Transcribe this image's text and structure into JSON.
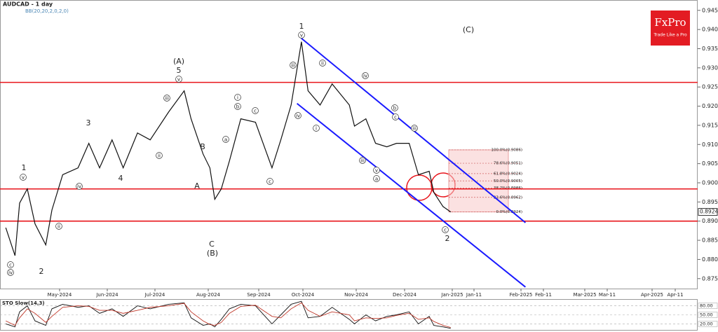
{
  "chart_data": {
    "type": "line",
    "title": "AUDCAD - 1 day",
    "subtitle": "BB(20,20,2,0,2,0)",
    "logo": {
      "brand": "FxPro",
      "tagline": "Trade Like a Pro"
    },
    "x": [
      "2024-03-27",
      "2024-04-02",
      "2024-04-05",
      "2024-04-10",
      "2024-04-15",
      "2024-04-22",
      "2024-04-26",
      "2024-05-03",
      "2024-05-13",
      "2024-05-20",
      "2024-05-27",
      "2024-06-04",
      "2024-06-11",
      "2024-06-20",
      "2024-06-28",
      "2024-07-09",
      "2024-07-18",
      "2024-07-22",
      "2024-07-29",
      "2024-08-02",
      "2024-08-05",
      "2024-08-09",
      "2024-08-14",
      "2024-08-21",
      "2024-08-30",
      "2024-09-10",
      "2024-09-16",
      "2024-09-23",
      "2024-09-30",
      "2024-10-04",
      "2024-10-11",
      "2024-10-18",
      "2024-10-28",
      "2024-10-31",
      "2024-11-07",
      "2024-11-13",
      "2024-11-20",
      "2024-11-26",
      "2024-12-04",
      "2024-12-10",
      "2024-12-17",
      "2024-12-20",
      "2024-12-26",
      "2024-12-31"
    ],
    "series": [
      {
        "name": "AUDCAD",
        "color": "#111111",
        "values": [
          0.8883,
          0.881,
          0.8947,
          0.8984,
          0.8893,
          0.8838,
          0.8929,
          0.9021,
          0.9039,
          0.9103,
          0.9039,
          0.9112,
          0.9039,
          0.913,
          0.9112,
          0.9185,
          0.924,
          0.9167,
          0.9075,
          0.9039,
          0.8957,
          0.8984,
          0.9057,
          0.9167,
          0.9158,
          0.9039,
          0.9112,
          0.9203,
          0.9368,
          0.924,
          0.9203,
          0.9258,
          0.9203,
          0.9148,
          0.9167,
          0.9103,
          0.9094,
          0.9103,
          0.9103,
          0.9021,
          0.903,
          0.8975,
          0.8938,
          0.8924
        ]
      }
    ],
    "last_price": 0.8924,
    "ylim": [
      0.8724,
      0.9477
    ],
    "yticks": [
      {
        "value": 0.945,
        "label": "0.9450"
      },
      {
        "value": 0.94,
        "label": "0.9400"
      },
      {
        "value": 0.935,
        "label": "0.9350"
      },
      {
        "value": 0.93,
        "label": "0.9300"
      },
      {
        "value": 0.925,
        "label": "0.9250"
      },
      {
        "value": 0.92,
        "label": "0.9200"
      },
      {
        "value": 0.915,
        "label": "0.9150"
      },
      {
        "value": 0.91,
        "label": "0.9100"
      },
      {
        "value": 0.905,
        "label": "0.9050"
      },
      {
        "value": 0.9,
        "label": "0.9000"
      },
      {
        "value": 0.895,
        "label": "0.8950"
      },
      {
        "value": 0.89,
        "label": "0.8900"
      },
      {
        "value": 0.885,
        "label": "0.8850"
      },
      {
        "value": 0.88,
        "label": "0.8800"
      },
      {
        "value": 0.875,
        "label": "0.8750"
      }
    ],
    "xticks": [
      {
        "value": "2024-05-01",
        "label": "May-2024"
      },
      {
        "value": "2024-06-01",
        "label": "Jun-2024"
      },
      {
        "value": "2024-07-01",
        "label": "Jul-2024"
      },
      {
        "value": "2024-08-01",
        "label": "Aug-2024"
      },
      {
        "value": "2024-09-01",
        "label": "Sep-2024"
      },
      {
        "value": "2024-10-01",
        "label": "Oct-2024"
      },
      {
        "value": "2024-11-01",
        "label": "Nov-2024"
      },
      {
        "value": "2024-12-01",
        "label": "Dec-2024"
      },
      {
        "value": "2025-01-01",
        "label": "Jan-2025"
      },
      {
        "value": "2025-01-11",
        "label": "Jan-11"
      },
      {
        "value": "2025-02-01",
        "label": "Feb-2025"
      },
      {
        "value": "2025-02-11",
        "label": "Feb-11"
      },
      {
        "value": "2025-03-01",
        "label": "Mar-2025"
      },
      {
        "value": "2025-03-11",
        "label": "Mar-11"
      },
      {
        "value": "2025-04-01",
        "label": "Apr-2025"
      },
      {
        "value": "2025-04-11",
        "label": "Apr-11"
      }
    ],
    "horizontal_lines": {
      "color": "#e8141b",
      "values": [
        0.9262,
        0.8984,
        0.89
      ]
    },
    "channel": {
      "color": "#1a1aff",
      "upper": {
        "x": [
          "2024-09-30",
          "2025-02-03"
        ],
        "values": [
          0.9377,
          0.8896
        ]
      },
      "lower": {
        "x": [
          "2024-09-27",
          "2025-02-03"
        ],
        "values": [
          0.9207,
          0.8728
        ]
      }
    },
    "fib_levels": [
      {
        "label": "100.0%(0.9086)",
        "price": 0.9086
      },
      {
        "label": "78.6%(0.9051)",
        "price": 0.9051
      },
      {
        "label": "61.8%(0.9024)",
        "price": 0.9024
      },
      {
        "label": "50.0%(0.9005)",
        "price": 0.9005
      },
      {
        "label": "38.2%(0.8986)",
        "price": 0.8986
      },
      {
        "label": "23.6%(0.8962)",
        "price": 0.8962
      },
      {
        "label": "0.0%(0.8924)",
        "price": 0.8924
      }
    ],
    "wave_labels": [
      "1",
      "(C)",
      "(A)",
      "5",
      "3",
      "4",
      "B",
      "A",
      "C",
      "(B)",
      "2",
      "1",
      "2"
    ],
    "subwave_labels": [
      "v",
      "iii",
      "iv",
      "i",
      "ii",
      "iv",
      "iii",
      "v",
      "a",
      "b",
      "c",
      "iii",
      "c",
      "v",
      "iv",
      "c",
      "ii",
      "iv",
      "v",
      "iii",
      "ii",
      "c",
      "i",
      "a",
      "b",
      "c"
    ],
    "stochastic": {
      "title": "STO Slow(14,3)",
      "ylim": [
        0,
        100
      ],
      "yticks": [
        {
          "value": 80,
          "label": "80.00"
        },
        {
          "value": 50,
          "label": "50.00"
        },
        {
          "value": 20,
          "label": "20.00"
        }
      ],
      "series": [
        {
          "name": "%K",
          "color": "#111111",
          "values": [
            20,
            10,
            60,
            80,
            30,
            15,
            70,
            85,
            75,
            80,
            55,
            70,
            45,
            80,
            70,
            85,
            90,
            40,
            15,
            20,
            10,
            35,
            70,
            85,
            80,
            20,
            50,
            85,
            95,
            40,
            45,
            75,
            35,
            20,
            50,
            30,
            45,
            50,
            60,
            20,
            45,
            15,
            10,
            5
          ]
        },
        {
          "name": "%D",
          "color": "#c0392b",
          "values": [
            30,
            15,
            40,
            70,
            55,
            25,
            45,
            75,
            80,
            78,
            65,
            65,
            55,
            65,
            75,
            80,
            88,
            60,
            30,
            18,
            15,
            25,
            55,
            78,
            82,
            45,
            40,
            70,
            90,
            65,
            45,
            60,
            50,
            30,
            40,
            38,
            40,
            48,
            55,
            35,
            40,
            28,
            15,
            8
          ]
        }
      ]
    }
  }
}
